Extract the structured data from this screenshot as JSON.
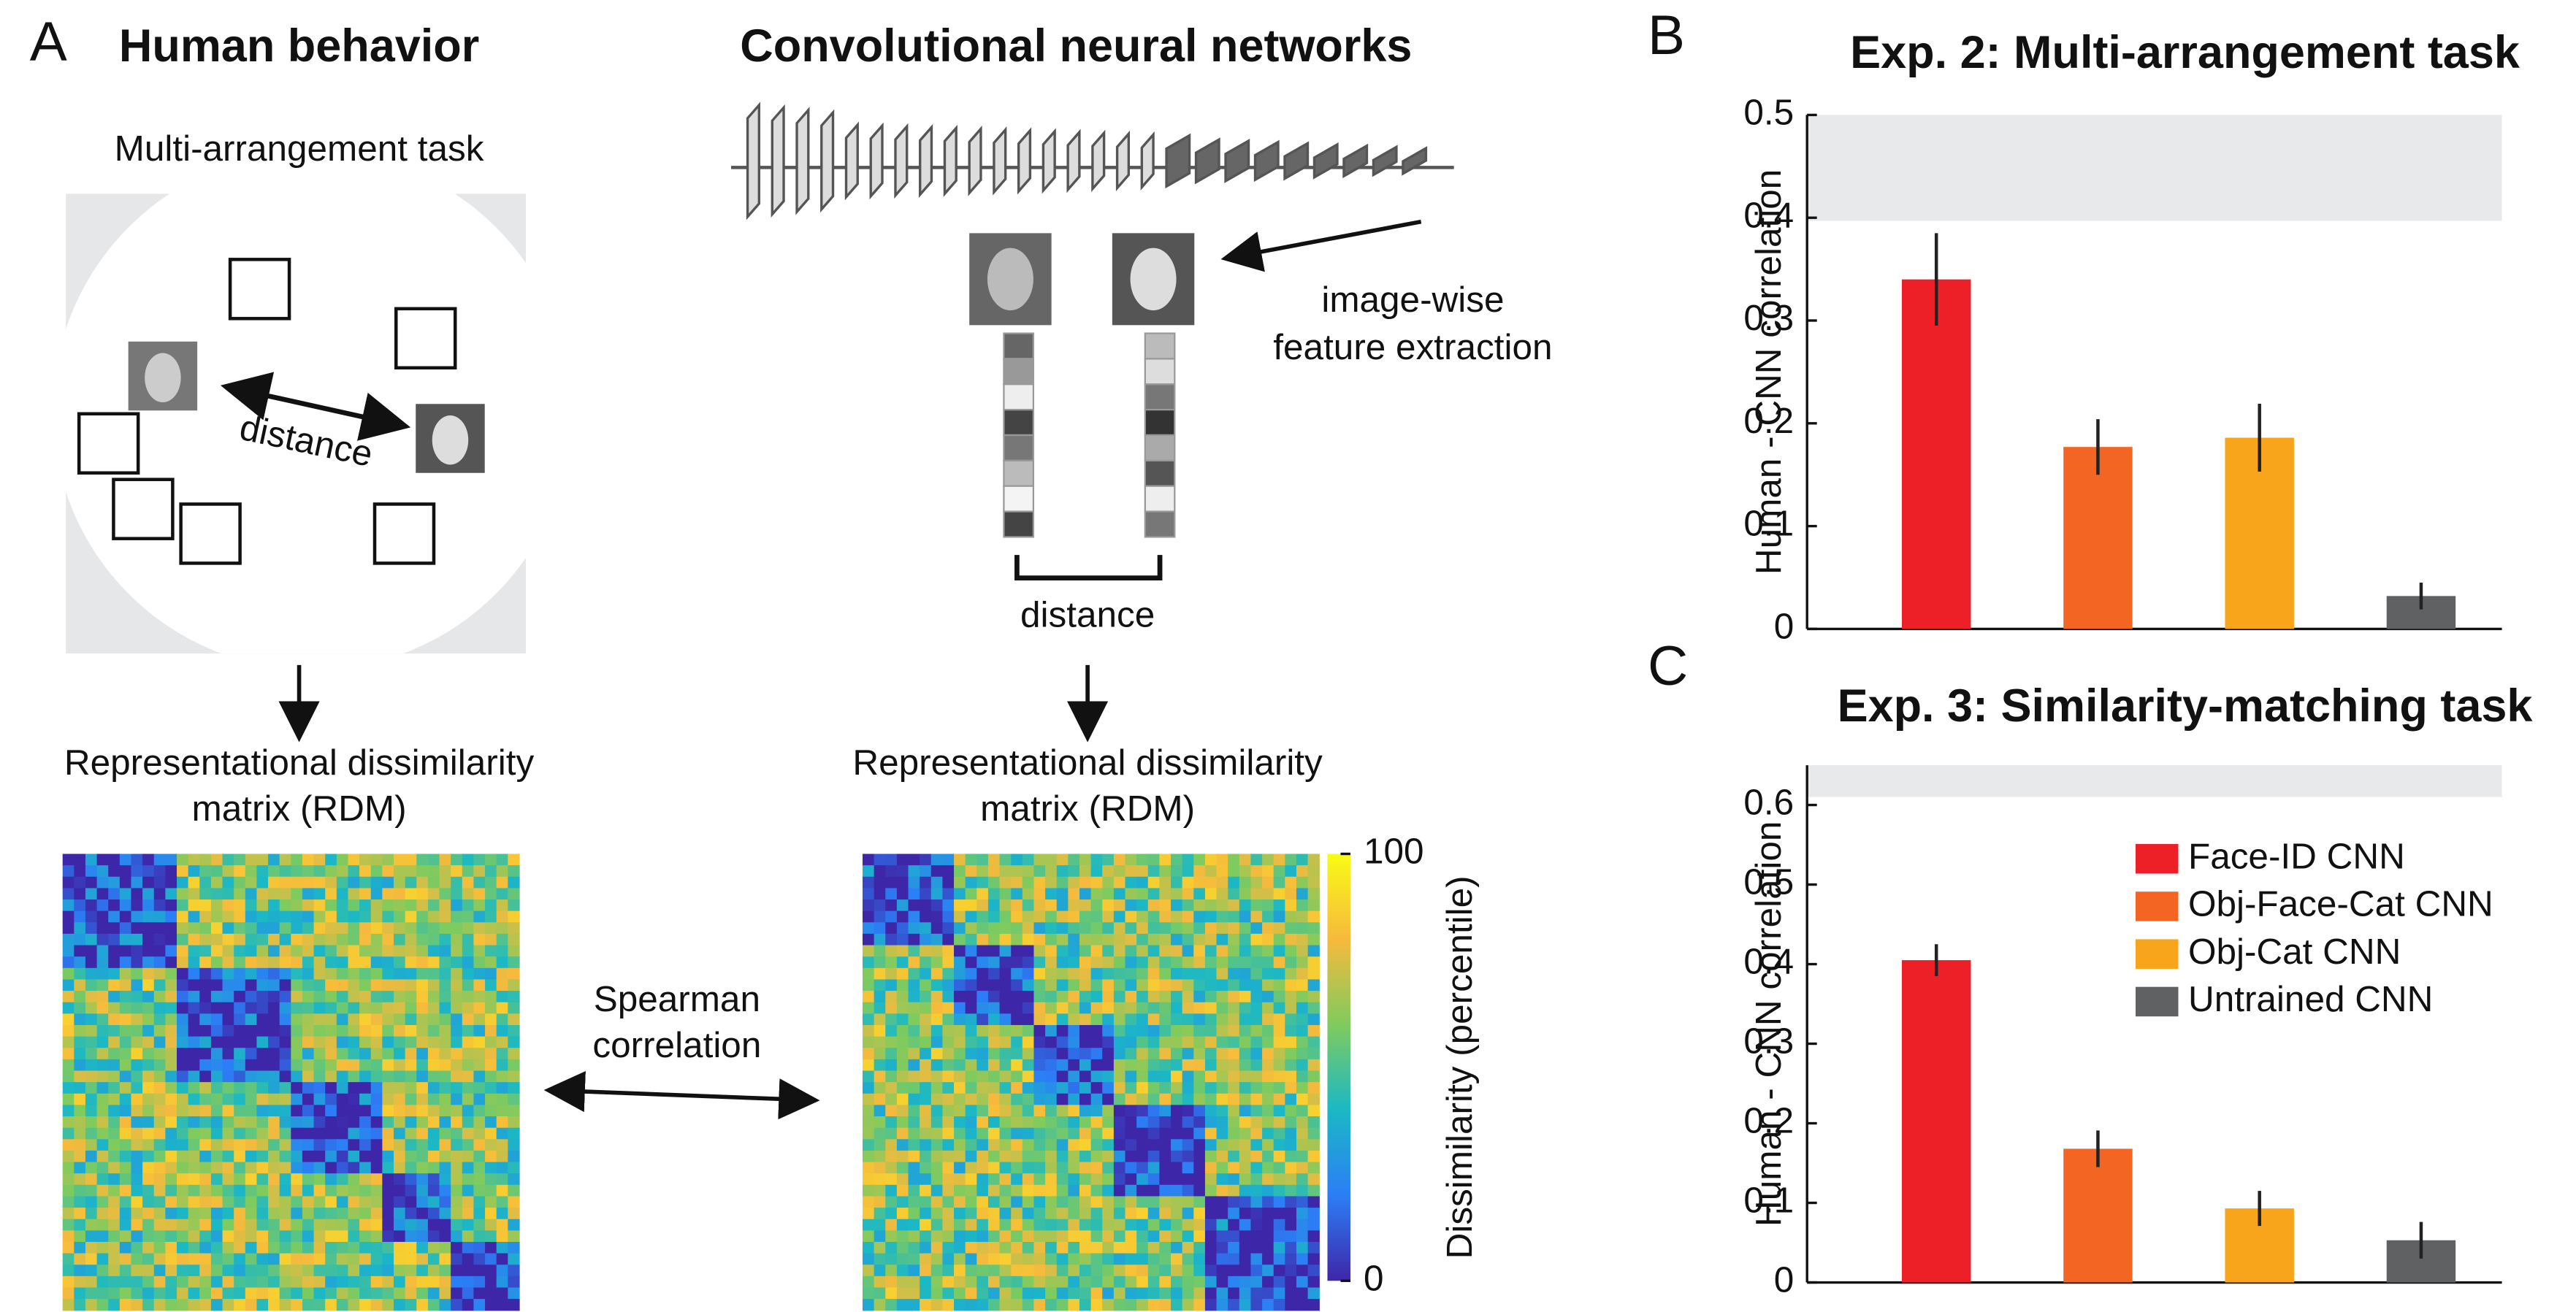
{
  "panel_a": {
    "label": "A",
    "left_title": "Human behavior",
    "right_title": "Convolutional neural networks",
    "task": "Multi-arrangement task",
    "distance_left": "distance",
    "extraction": [
      "image-wise",
      "feature extraction"
    ],
    "distance_right": "distance",
    "rdm_left": [
      "Representational dissimilarity",
      "matrix (RDM)"
    ],
    "rdm_right": [
      "Representational dissimilarity",
      "matrix (RDM)"
    ],
    "spearman": [
      "Spearman",
      "correlation"
    ],
    "colorbar": {
      "label": "Dissimilarity (percentile)",
      "lim": [
        0,
        100
      ],
      "ticks": [
        0,
        100
      ]
    }
  },
  "chart_data": [
    {
      "panel": "B",
      "type": "bar",
      "title": "Exp. 2: Multi-arrangement task",
      "ylabel": "Human - CNN correlation",
      "ylim": [
        0,
        0.5
      ],
      "yticks": [
        0,
        0.1,
        0.2,
        0.3,
        0.4,
        0.5
      ],
      "ceiling": [
        0.397,
        0.5
      ],
      "series": [
        {
          "color": "#ee2027",
          "values": [
            0.34
          ],
          "errors": [
            0.045
          ]
        },
        {
          "color": "#f26522",
          "values": [
            0.177
          ],
          "errors": [
            0.027
          ]
        },
        {
          "color": "#f9a51b",
          "values": [
            0.186
          ],
          "errors": [
            0.033
          ]
        },
        {
          "color": "#5f6163",
          "values": [
            0.032
          ],
          "errors": [
            0.013
          ]
        }
      ]
    },
    {
      "panel": "C",
      "type": "bar",
      "title": "Exp. 3: Similarity-matching task",
      "ylabel": "Human - CNN correlation",
      "ylim": [
        0,
        0.65
      ],
      "yticks": [
        0,
        0.1,
        0.2,
        0.3,
        0.4,
        0.5,
        0.6
      ],
      "ceiling": [
        0.61,
        0.65
      ],
      "series": [
        {
          "name": "Face-ID CNN",
          "color": "#ee2027",
          "values": [
            0.405
          ],
          "errors": [
            0.02
          ]
        },
        {
          "name": "Obj-Face-Cat CNN",
          "color": "#f26522",
          "values": [
            0.168
          ],
          "errors": [
            0.023
          ]
        },
        {
          "name": "Obj-Cat CNN",
          "color": "#f9a51b",
          "values": [
            0.093
          ],
          "errors": [
            0.022
          ]
        },
        {
          "name": "Untrained CNN",
          "color": "#5f6163",
          "values": [
            0.053
          ],
          "errors": [
            0.023
          ]
        }
      ]
    }
  ]
}
